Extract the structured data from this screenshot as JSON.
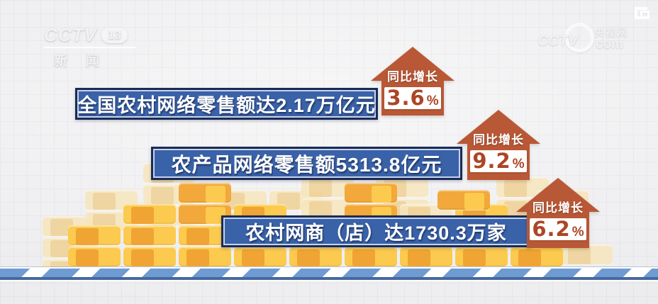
{
  "watermarks": {
    "channel": {
      "cctv": "CCTV",
      "num": "13",
      "name": "新闻"
    },
    "site": {
      "cctv": "CCTV",
      "cn": "央视网",
      "com": "com"
    }
  },
  "stats": [
    {
      "label": "全国农村网络零售额达2.17万亿元",
      "growth_label": "同比增长",
      "growth_value": "3.6",
      "percent_sign": "%"
    },
    {
      "label": "农产品网络零售额5313.8亿元",
      "growth_label": "同比增长",
      "growth_value": "9.2",
      "percent_sign": "%"
    },
    {
      "label": "农村网商（店）达1730.3万家",
      "growth_label": "同比增长",
      "growth_value": "6.2",
      "percent_sign": "%"
    }
  ],
  "colors": {
    "banner_blue": "#3a62a9",
    "banner_border": "#1a2b55",
    "arrow_red": "#b95836",
    "value_red": "#ad4526",
    "coin_gold": "#fcca4e",
    "coin_orange": "#f0a434",
    "coin_pale": "#f7e6bd",
    "ground_blue": "#6f9bd3"
  },
  "chart_data": {
    "type": "bar",
    "categories": [
      "全国农村网络零售额",
      "农产品网络零售额",
      "农村网商（店）"
    ],
    "values_text": [
      "2.17万亿元",
      "5313.8亿元",
      "1730.3万家"
    ],
    "series": [
      {
        "name": "同比增长",
        "values": [
          3.6,
          9.2,
          6.2
        ],
        "unit": "%"
      }
    ],
    "title": "",
    "legend": "off",
    "grid": "on"
  }
}
